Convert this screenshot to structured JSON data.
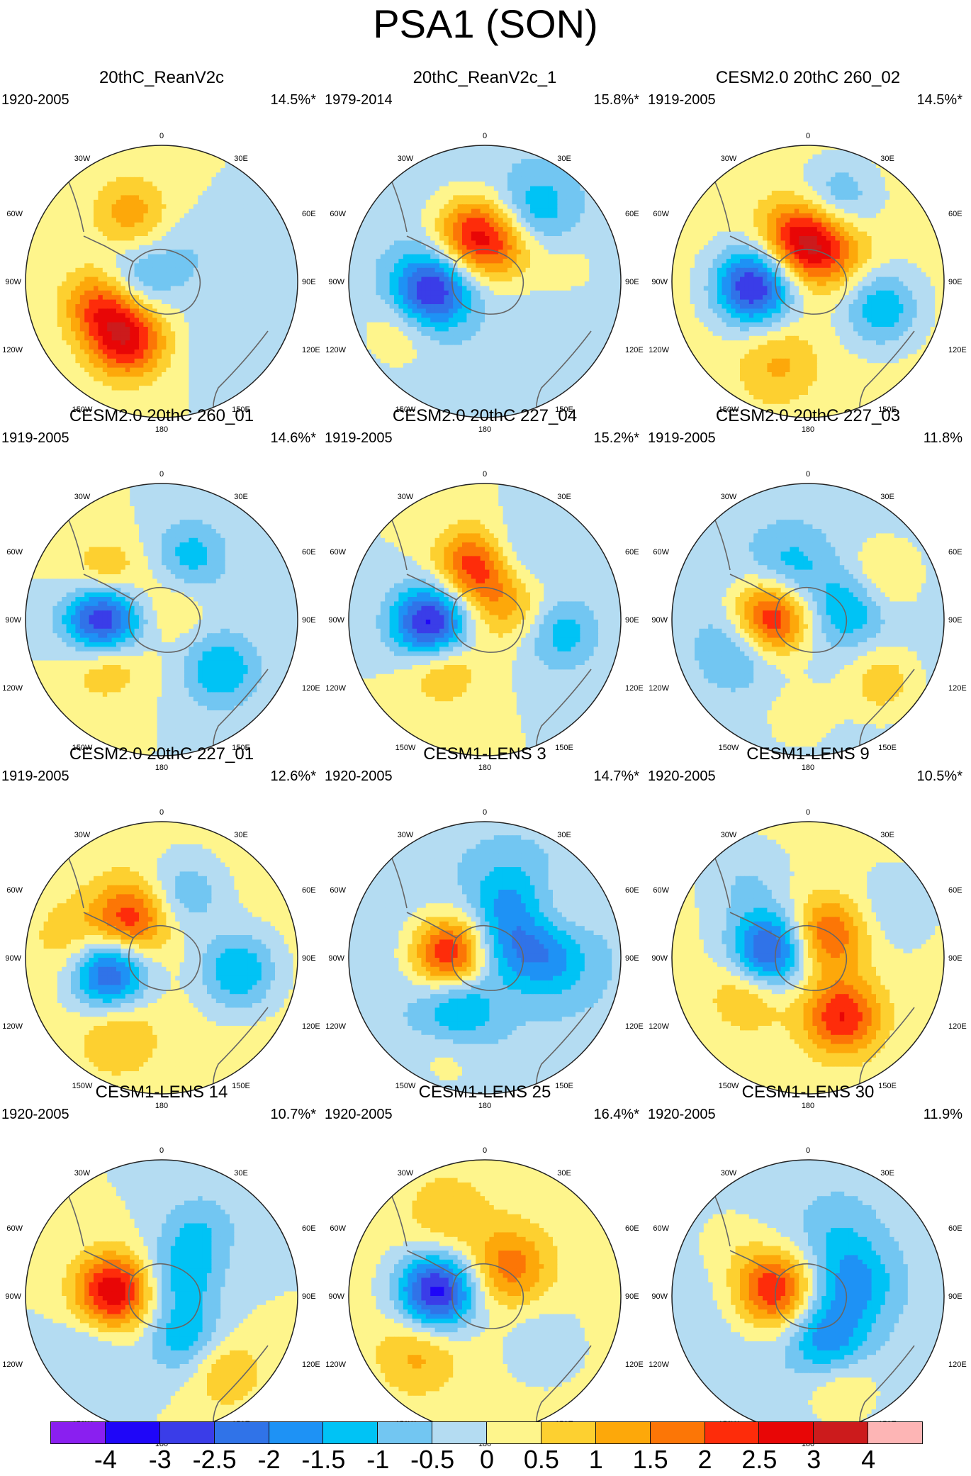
{
  "title": "PSA1 (SON)",
  "colors": [
    "#8a1ff0",
    "#1f06f8",
    "#3a3de8",
    "#3073e8",
    "#1e92f5",
    "#00c3f5",
    "#72c6f2",
    "#b4dcf2",
    "#fef58c",
    "#fdd030",
    "#fda80a",
    "#fc7606",
    "#fe2c0a",
    "#e80606",
    "#cc1b1c",
    "#fdb5b5"
  ],
  "colorbar": {
    "labels": [
      "-4",
      "-3",
      "-2.5",
      "-2",
      "-1.5",
      "-1",
      "-0.5",
      "0",
      "0.5",
      "1",
      "1.5",
      "2",
      "2.5",
      "3",
      "4"
    ]
  },
  "map_labels": {
    "top": "0",
    "bottom": "180",
    "30W": "30W",
    "30E": "30E",
    "60W": "60W",
    "60E": "60E",
    "90W": "90W",
    "90E": "90E",
    "120W": "120W",
    "120E": "120E",
    "150W": "150W",
    "150E": "150E"
  },
  "chart_data": {
    "type": "polar-contour-panels",
    "colorbar_levels": [
      -4,
      -3,
      -2.5,
      -2,
      -1.5,
      -1,
      -0.5,
      0,
      0.5,
      1,
      1.5,
      2,
      2.5,
      3,
      4
    ],
    "panels": [
      {
        "name": "20thC_ReanV2c",
        "period": "1920-2005",
        "variance": "14.5%*",
        "background": 0,
        "blobs": [
          {
            "lat": -55,
            "lon": -150,
            "v": 2.6
          },
          {
            "lat": -58,
            "lon": -110,
            "v": 2.2
          },
          {
            "lat": -52,
            "lon": -25,
            "v": 1.3
          },
          {
            "lat": -75,
            "lon": -90,
            "v": -1.4
          },
          {
            "lat": -72,
            "lon": 45,
            "v": -0.5
          },
          {
            "lat": -45,
            "lon": 135,
            "v": -0.4
          }
        ]
      },
      {
        "name": "20thC_ReanV2c_1",
        "period": "1979-2014",
        "variance": "15.8%*",
        "background": -0.3,
        "blobs": [
          {
            "lat": -62,
            "lon": -100,
            "v": -2.9
          },
          {
            "lat": -65,
            "lon": -15,
            "v": 2.4
          },
          {
            "lat": -70,
            "lon": 30,
            "v": 1.3
          },
          {
            "lat": -45,
            "lon": 35,
            "v": -1.2
          },
          {
            "lat": -40,
            "lon": -120,
            "v": 0.8
          },
          {
            "lat": -45,
            "lon": 80,
            "v": 0.4
          }
        ]
      },
      {
        "name": "CESM2.0 20thC 260_02",
        "period": "1919-2005",
        "variance": "14.5%*",
        "background": 0.2,
        "blobs": [
          {
            "lat": -62,
            "lon": -95,
            "v": -3.3
          },
          {
            "lat": -68,
            "lon": -10,
            "v": 2.6
          },
          {
            "lat": -70,
            "lon": 40,
            "v": 1.3
          },
          {
            "lat": -50,
            "lon": 110,
            "v": -1.6
          },
          {
            "lat": -45,
            "lon": 20,
            "v": -1.2
          },
          {
            "lat": -45,
            "lon": -160,
            "v": 0.9
          }
        ]
      },
      {
        "name": "CESM2.0 20thC 260_01",
        "period": "1919-2005",
        "variance": "14.6%*",
        "background": 0,
        "blobs": [
          {
            "lat": -60,
            "lon": -90,
            "v": -3.8
          },
          {
            "lat": -55,
            "lon": -125,
            "v": 1.4
          },
          {
            "lat": -55,
            "lon": -55,
            "v": 1.4
          },
          {
            "lat": -50,
            "lon": 130,
            "v": -1.5
          },
          {
            "lat": -55,
            "lon": 25,
            "v": -1.3
          },
          {
            "lat": -80,
            "lon": 30,
            "v": 0.6
          }
        ]
      },
      {
        "name": "CESM2.0 20thC 227_04",
        "period": "1919-2005",
        "variance": "15.2%*",
        "background": 0,
        "blobs": [
          {
            "lat": -62,
            "lon": -95,
            "v": -3.5
          },
          {
            "lat": -62,
            "lon": -10,
            "v": 2.5
          },
          {
            "lat": -58,
            "lon": -135,
            "v": 1.4
          },
          {
            "lat": -75,
            "lon": 60,
            "v": 1.2
          },
          {
            "lat": -50,
            "lon": 100,
            "v": -1.3
          },
          {
            "lat": -55,
            "lon": 25,
            "v": -1.0
          }
        ]
      },
      {
        "name": "CESM2.0 20thC 227_03",
        "period": "1919-2005",
        "variance": "11.8%",
        "background": -0.3,
        "blobs": [
          {
            "lat": -70,
            "lon": -90,
            "v": 3.2
          },
          {
            "lat": -55,
            "lon": -110,
            "v": -1.3
          },
          {
            "lat": -62,
            "lon": -20,
            "v": -1.0
          },
          {
            "lat": -68,
            "lon": 75,
            "v": -1.3
          },
          {
            "lat": -40,
            "lon": 130,
            "v": 1.1
          },
          {
            "lat": -45,
            "lon": 60,
            "v": 1.0
          },
          {
            "lat": -40,
            "lon": -175,
            "v": 0.6
          }
        ]
      },
      {
        "name": "CESM2.0 20thC 227_01",
        "period": "1919-2005",
        "variance": "12.6%*",
        "background": 0.2,
        "blobs": [
          {
            "lat": -62,
            "lon": -105,
            "v": -3.0
          },
          {
            "lat": -65,
            "lon": -40,
            "v": 2.3
          },
          {
            "lat": -50,
            "lon": 100,
            "v": -1.7
          },
          {
            "lat": -55,
            "lon": 20,
            "v": -1.1
          },
          {
            "lat": -45,
            "lon": -150,
            "v": 0.9
          },
          {
            "lat": -45,
            "lon": -80,
            "v": 0.8
          }
        ]
      },
      {
        "name": "CESM1-LENS 3",
        "period": "1920-2005",
        "variance": "14.7%*",
        "background": -0.4,
        "blobs": [
          {
            "lat": -72,
            "lon": -85,
            "v": 3.0
          },
          {
            "lat": -62,
            "lon": -150,
            "v": -1.5
          },
          {
            "lat": -75,
            "lon": 60,
            "v": -1.3
          },
          {
            "lat": -55,
            "lon": 90,
            "v": -1.3
          },
          {
            "lat": -55,
            "lon": 20,
            "v": -1.0
          },
          {
            "lat": -35,
            "lon": -160,
            "v": 0.6
          },
          {
            "lat": -45,
            "lon": 60,
            "v": 0.5
          }
        ]
      },
      {
        "name": "CESM1-LENS 9",
        "period": "1920-2005",
        "variance": "10.5%*",
        "background": 0.1,
        "blobs": [
          {
            "lat": -70,
            "lon": -80,
            "v": -3.0
          },
          {
            "lat": -55,
            "lon": 150,
            "v": 2.4
          },
          {
            "lat": -75,
            "lon": 40,
            "v": 2.0
          },
          {
            "lat": -55,
            "lon": -120,
            "v": 1.1
          },
          {
            "lat": -40,
            "lon": -40,
            "v": -0.6
          },
          {
            "lat": -40,
            "lon": 60,
            "v": -0.5
          }
        ]
      },
      {
        "name": "CESM1-LENS 14",
        "period": "1920-2005",
        "variance": "10.7%*",
        "background": 0,
        "blobs": [
          {
            "lat": -65,
            "lon": -85,
            "v": 3.0
          },
          {
            "lat": -65,
            "lon": 150,
            "v": -1.4
          },
          {
            "lat": -75,
            "lon": 45,
            "v": -1.2
          },
          {
            "lat": -50,
            "lon": 30,
            "v": -0.9
          },
          {
            "lat": -40,
            "lon": 140,
            "v": 1.1
          },
          {
            "lat": -45,
            "lon": -125,
            "v": -0.6
          }
        ]
      },
      {
        "name": "CESM1-LENS 25",
        "period": "1920-2005",
        "variance": "16.4%*",
        "background": 0.2,
        "blobs": [
          {
            "lat": -65,
            "lon": -85,
            "v": -3.4
          },
          {
            "lat": -70,
            "lon": 40,
            "v": 1.6
          },
          {
            "lat": -45,
            "lon": -130,
            "v": 1.0
          },
          {
            "lat": -45,
            "lon": -25,
            "v": 0.8
          },
          {
            "lat": -50,
            "lon": 130,
            "v": -0.7
          }
        ]
      },
      {
        "name": "CESM1-LENS 30",
        "period": "1920-2005",
        "variance": "11.9%",
        "background": -0.3,
        "blobs": [
          {
            "lat": -72,
            "lon": -80,
            "v": 2.7
          },
          {
            "lat": -65,
            "lon": 155,
            "v": -1.7
          },
          {
            "lat": -65,
            "lon": 75,
            "v": -1.4
          },
          {
            "lat": -55,
            "lon": 25,
            "v": -0.6
          },
          {
            "lat": -40,
            "lon": 160,
            "v": 0.9
          },
          {
            "lat": -40,
            "lon": -55,
            "v": 0.5
          }
        ]
      }
    ]
  }
}
